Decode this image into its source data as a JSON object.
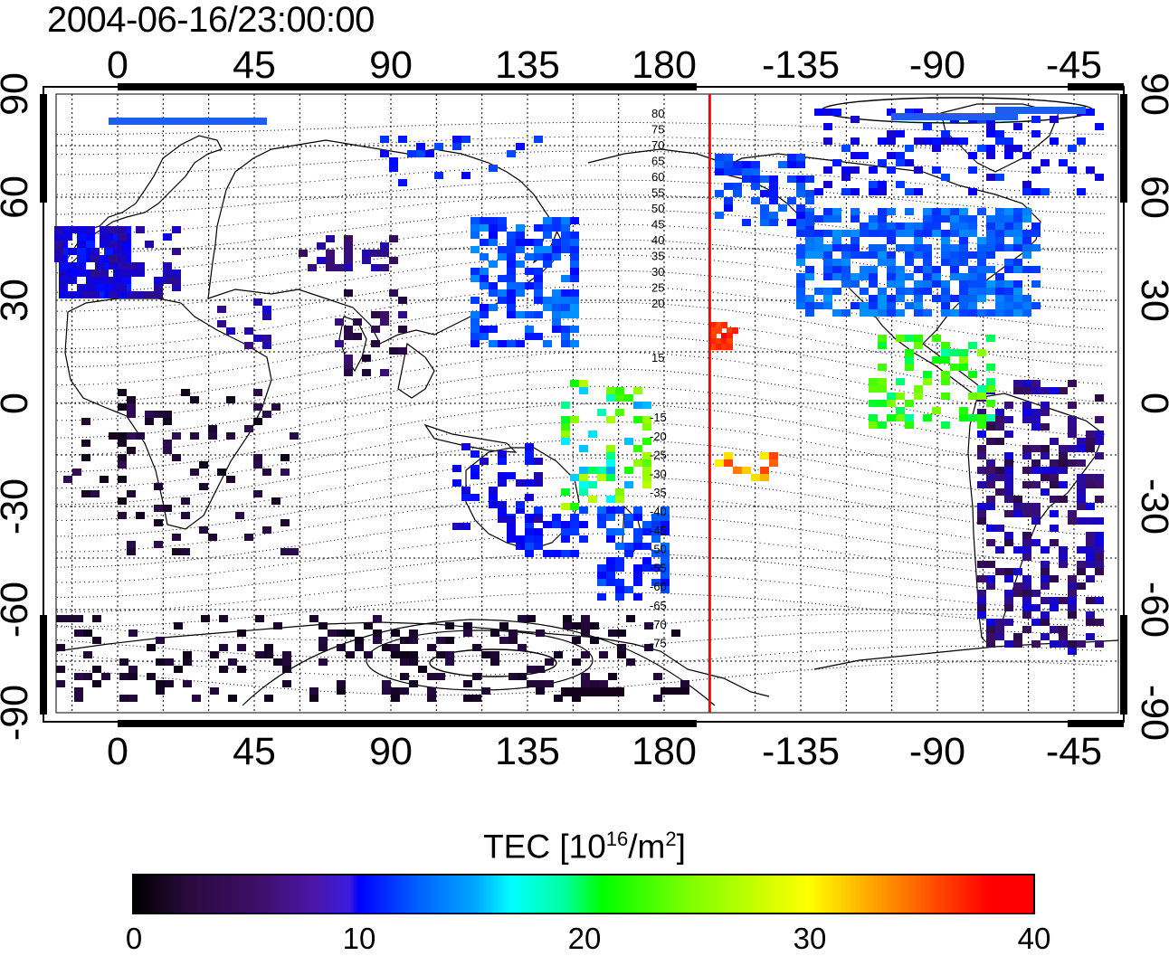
{
  "title": "2004-06-16/23:00:00",
  "axes": {
    "x_ticks": [
      "0",
      "45",
      "90",
      "135",
      "180",
      "-135",
      "-90",
      "-45"
    ],
    "y_ticks": [
      "90",
      "60",
      "30",
      "0",
      "-30",
      "-60",
      "-90"
    ]
  },
  "contour_labels_north": [
    "80",
    "75",
    "70",
    "65",
    "60",
    "55",
    "50",
    "45",
    "40",
    "35",
    "30",
    "25",
    "20",
    "15"
  ],
  "contour_labels_south": [
    "-15",
    "-20",
    "-25",
    "-30",
    "-35",
    "-40",
    "-45",
    "-50",
    "-55",
    "-60",
    "-65",
    "-70",
    "-75"
  ],
  "colorbar": {
    "title_prefix": "TEC  [10",
    "title_exp1": "16",
    "title_mid": "/m",
    "title_exp2": "2",
    "title_suffix": "]",
    "ticks": [
      "0",
      "10",
      "20",
      "30",
      "40"
    ],
    "range": [
      0,
      40
    ],
    "colors": [
      "#000000",
      "#3d0f6a",
      "#0000ff",
      "#00ffff",
      "#00ff00",
      "#ffff00",
      "#ff0000"
    ]
  },
  "terminator_longitude": 195,
  "terminator_color": "#ff0000"
}
